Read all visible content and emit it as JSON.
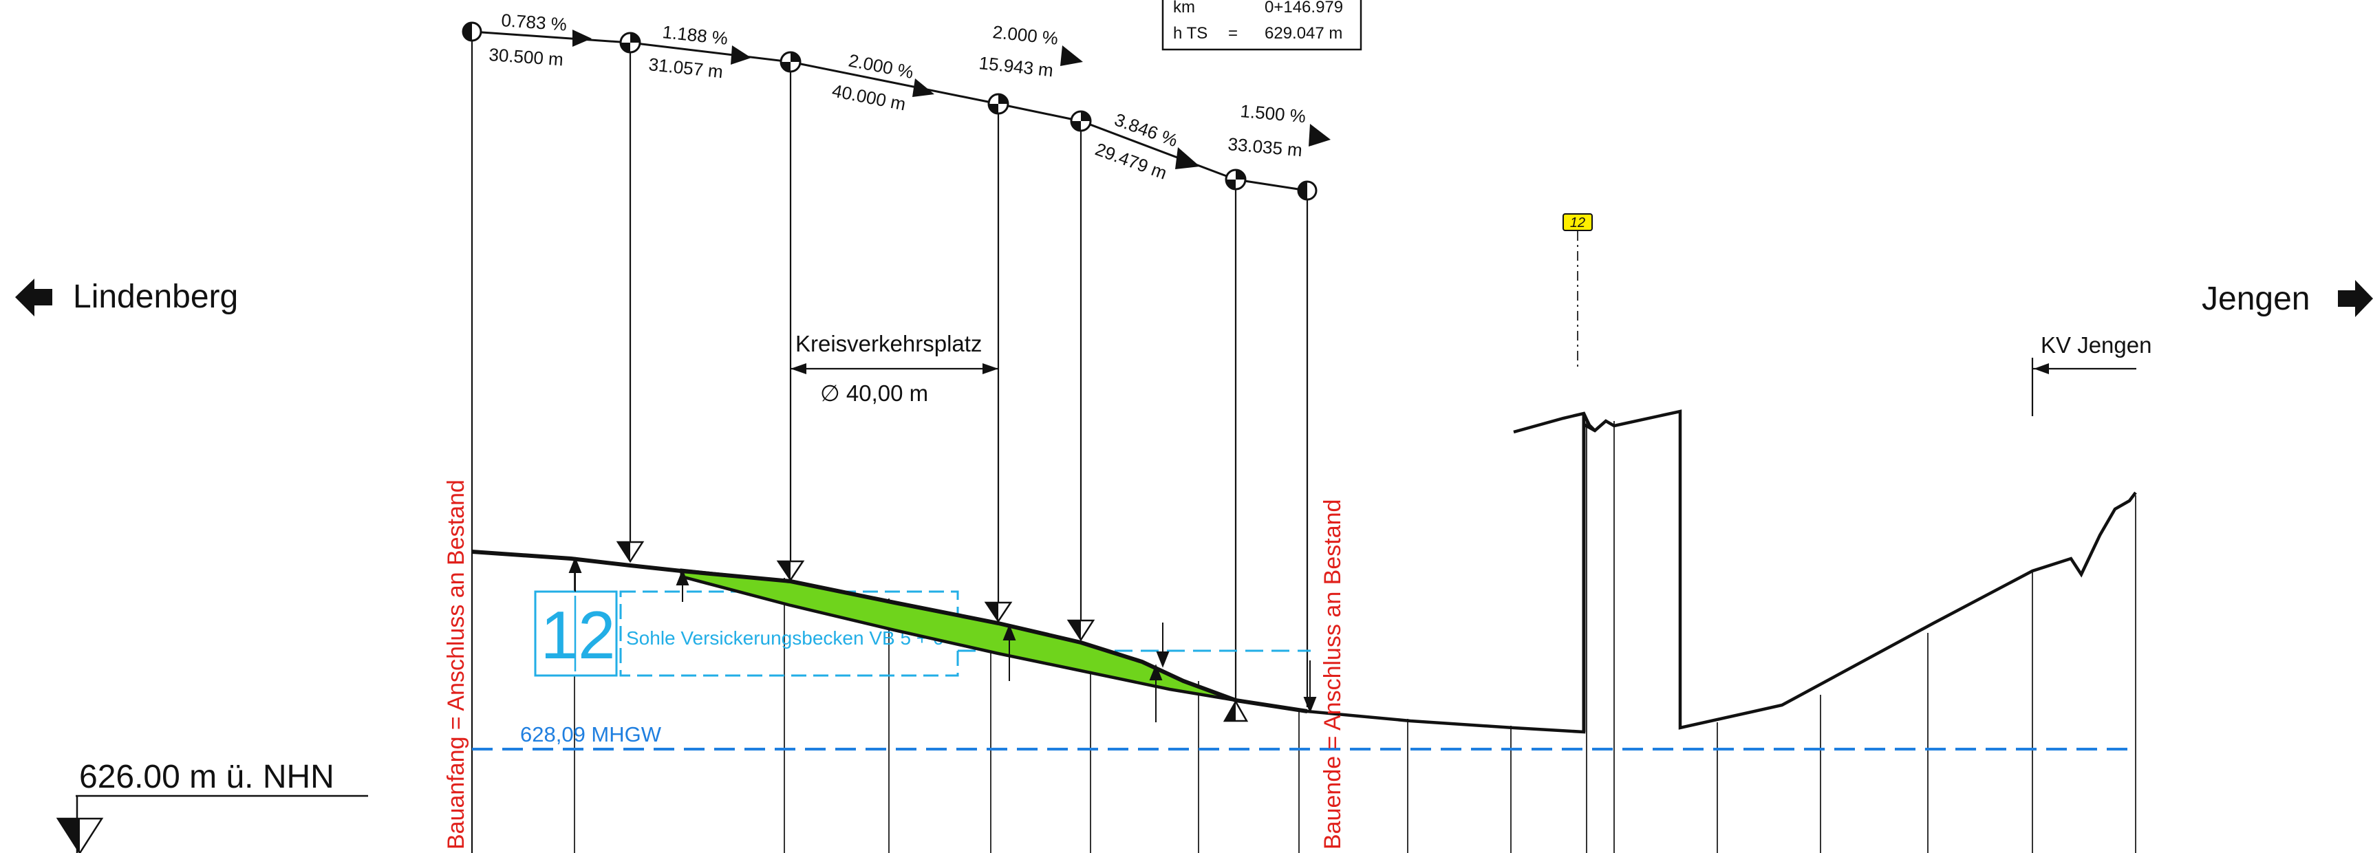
{
  "colors": {
    "line": "#111111",
    "red": "#e0201b",
    "cyan": "#22aee6",
    "blue": "#1f7fe0",
    "green": "#6fd41c",
    "yellow_tag": "#ffee00"
  },
  "directions": {
    "left": "Lindenberg",
    "right": "Jengen"
  },
  "reference_level": "626.00 m ü. NHN",
  "info_box": {
    "km_label": "km",
    "km_value": "0+146.979",
    "hts_label": "h TS",
    "hts_eq": "=",
    "hts_value": "629.047 m"
  },
  "gradients": [
    {
      "percent": "0.783 %",
      "length": "30.500 m"
    },
    {
      "percent": "1.188 %",
      "length": "31.057 m"
    },
    {
      "percent": "2.000 %",
      "length": "40.000 m"
    },
    {
      "percent": "2.000 %",
      "length": "15.943 m"
    },
    {
      "percent": "3.846 %",
      "length": "29.479 m"
    },
    {
      "percent": "1.500 %",
      "length": "33.035 m"
    }
  ],
  "roundabout": {
    "title": "Kreisverkehrsplatz",
    "diameter": "∅ 40,00 m"
  },
  "kv_jengen": "KV Jengen",
  "build_start": "Bauanfang = Anschluss an Bestand",
  "build_end": "Bauende = Anschluss an Bestand",
  "basin": {
    "number": "12",
    "label": "Sohle Versickerungsbecken VB 5 + 6"
  },
  "groundwater": "628,09 MHGW",
  "station_tag": "12"
}
